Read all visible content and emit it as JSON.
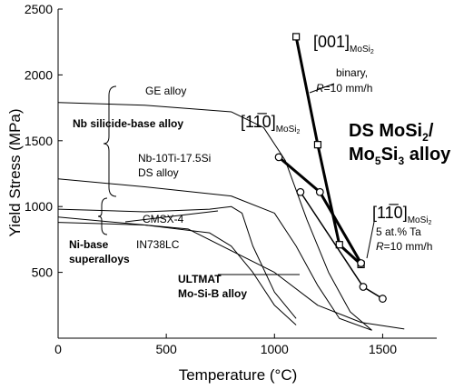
{
  "chart_data": {
    "type": "line",
    "xlabel": "Temperature (°C)",
    "ylabel": "Yield Stress (MPa)",
    "xlim": [
      0,
      1750
    ],
    "ylim": [
      0,
      2500
    ],
    "xticks": [
      0,
      500,
      1000,
      1500
    ],
    "yticks": [
      500,
      1000,
      1500,
      2000,
      2500
    ],
    "series": [
      {
        "color": "#000000",
        "width": 3,
        "marker": "square",
        "x": [
          1100,
          1200,
          1300,
          1400
        ],
        "values": [
          2290,
          1470,
          710,
          560
        ]
      },
      {
        "color": "#000000",
        "width": 3,
        "marker": "circle",
        "x": [
          1020,
          1210,
          1400
        ],
        "values": [
          1375,
          1110,
          570
        ]
      },
      {
        "color": "#000000",
        "width": 1.5,
        "marker": "circle",
        "x": [
          1120,
          1410,
          1500
        ],
        "values": [
          1110,
          390,
          300
        ]
      },
      {
        "color": "#000000",
        "width": 1,
        "marker": "none",
        "x": [
          0,
          400,
          800,
          950,
          1050,
          1150,
          1250,
          1350,
          1450
        ],
        "values": [
          1790,
          1770,
          1720,
          1600,
          1350,
          900,
          500,
          200,
          60
        ]
      },
      {
        "color": "#000000",
        "width": 1,
        "marker": "none",
        "x": [
          0,
          400,
          800,
          1000,
          1100,
          1200,
          1300,
          1450
        ],
        "values": [
          1210,
          1150,
          1080,
          950,
          700,
          400,
          150,
          60
        ]
      },
      {
        "color": "#000000",
        "width": 1,
        "marker": "none",
        "x": [
          0,
          400,
          700,
          800,
          850,
          900,
          1000,
          1100
        ],
        "values": [
          980,
          960,
          980,
          1000,
          950,
          700,
          350,
          150
        ]
      },
      {
        "color": "#000000",
        "width": 1,
        "marker": "none",
        "x": [
          0,
          400,
          700,
          800,
          900,
          1000,
          1100
        ],
        "values": [
          880,
          860,
          800,
          700,
          500,
          250,
          100
        ]
      },
      {
        "color": "#000000",
        "width": 1,
        "marker": "none",
        "x": [
          0,
          600,
          1000,
          1200,
          1400,
          1600
        ],
        "values": [
          920,
          830,
          500,
          250,
          120,
          70
        ]
      }
    ],
    "annotations": [
      [
        "[001]",
        "MoSi",
        "2"
      ],
      [
        "binary,"
      ],
      [
        "R",
        "=10 mm/h"
      ],
      [
        "[11̅0]",
        "MoSi",
        "2"
      ],
      [
        "DS MoSi",
        "2",
        "/"
      ],
      [
        "Mo",
        "5",
        "Si",
        "3",
        " alloy"
      ],
      [
        "[11̅0]",
        "MoSi",
        "2"
      ],
      [
        "5 at.% Ta"
      ],
      [
        "R",
        "=10 mm/h"
      ],
      [
        "GE alloy"
      ],
      [
        "Nb silicide-base alloy"
      ],
      [
        "Nb-10Ti-17.5Si"
      ],
      [
        "DS alloy"
      ],
      [
        "CMSX-4"
      ],
      [
        "IN738LC"
      ],
      [
        "Ni-base"
      ],
      [
        "superalloys"
      ],
      [
        "ULTMAT"
      ],
      [
        "Mo-Si-B alloy"
      ]
    ]
  }
}
